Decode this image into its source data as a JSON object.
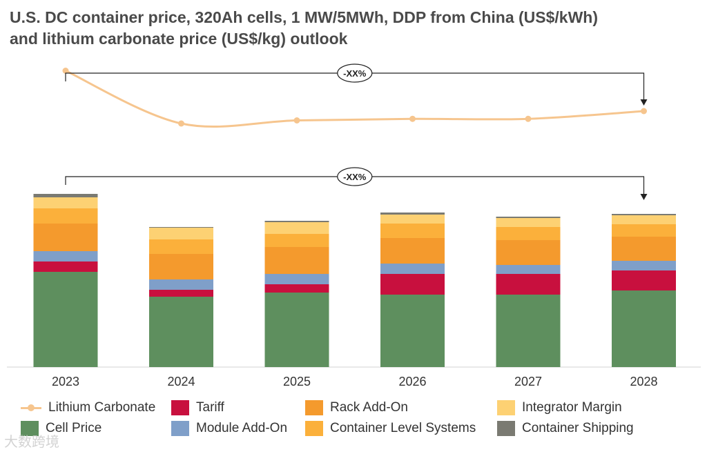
{
  "title_line1": "U.S. DC container price, 320Ah cells, 1 MW/5MWh, DDP from China (US$/kWh)",
  "title_line2": "and lithium carbonate price (US$/kg) outlook",
  "watermark": "大数跨境",
  "annotations": {
    "top": "-XX%",
    "bottom": "-XX%"
  },
  "colors": {
    "cell_price": "#5e8f5e",
    "tariff": "#c8103e",
    "module_add_on": "#7f9fc9",
    "rack_add_on": "#f49a2d",
    "container_level_systems": "#fbb03b",
    "integrator_margin": "#fdd173",
    "container_shipping": "#7a7a72",
    "lithium_carbonate": "#f6c58e"
  },
  "chart_data": {
    "type": "bar",
    "stacked": true,
    "categories": [
      "2023",
      "2024",
      "2025",
      "2026",
      "2027",
      "2028"
    ],
    "ylim": [
      0,
      250
    ],
    "series": [
      {
        "name": "Cell Price",
        "values": [
          138,
          102,
          108,
          105,
          105,
          111
        ]
      },
      {
        "name": "Tariff",
        "values": [
          15,
          10,
          12,
          30,
          30,
          29
        ]
      },
      {
        "name": "Module Add-On",
        "values": [
          15,
          15,
          15,
          15,
          13,
          14
        ]
      },
      {
        "name": "Rack Add-On",
        "values": [
          40,
          37,
          39,
          37,
          36,
          35
        ]
      },
      {
        "name": "Container Level Systems",
        "values": [
          22,
          21,
          19,
          21,
          19,
          18
        ]
      },
      {
        "name": "Integrator Margin",
        "values": [
          16,
          17,
          17,
          13,
          13,
          13
        ]
      },
      {
        "name": "Container Shipping",
        "values": [
          5,
          1,
          2,
          3,
          2,
          2
        ]
      }
    ],
    "lithium_carbonate": {
      "name": "Lithium Carbonate",
      "values": [
        35,
        18,
        19,
        19.5,
        19.5,
        22
      ]
    }
  },
  "legend": [
    "Lithium Carbonate",
    "Tariff",
    "Rack Add-On",
    "Integrator Margin",
    "Cell Price",
    "Module Add-On",
    "Container Level Systems",
    "Container Shipping"
  ]
}
